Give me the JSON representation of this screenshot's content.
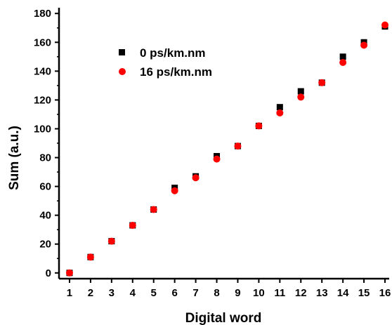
{
  "chart_data": {
    "type": "scatter",
    "title": "",
    "xlabel": "Digital word",
    "ylabel": "Sum (a.u.)",
    "xlim": [
      0.5,
      16.2
    ],
    "ylim": [
      -4,
      184
    ],
    "x_ticks": [
      1,
      2,
      3,
      4,
      5,
      6,
      7,
      8,
      9,
      10,
      11,
      12,
      13,
      14,
      15,
      16
    ],
    "y_ticks": [
      0,
      20,
      40,
      60,
      80,
      100,
      120,
      140,
      160,
      180
    ],
    "grid": false,
    "legend_position": "upper-left",
    "series": [
      {
        "name": "0 ps/km.nm",
        "marker": "square",
        "color": "#000000",
        "x": [
          1,
          2,
          3,
          4,
          5,
          6,
          7,
          8,
          9,
          10,
          11,
          12,
          13,
          14,
          15,
          16
        ],
        "y": [
          0,
          11,
          22,
          33,
          44,
          59,
          67,
          81,
          88,
          102,
          115,
          126,
          132,
          150,
          160,
          171
        ]
      },
      {
        "name": "16 ps/km.nm",
        "marker": "circle",
        "color": "#ff0000",
        "x": [
          1,
          2,
          3,
          4,
          5,
          6,
          7,
          8,
          9,
          10,
          11,
          12,
          13,
          14,
          15,
          16
        ],
        "y": [
          0,
          11,
          22,
          33,
          44,
          57,
          66,
          79,
          88,
          102,
          111,
          122,
          132,
          146,
          158,
          172
        ]
      }
    ]
  }
}
